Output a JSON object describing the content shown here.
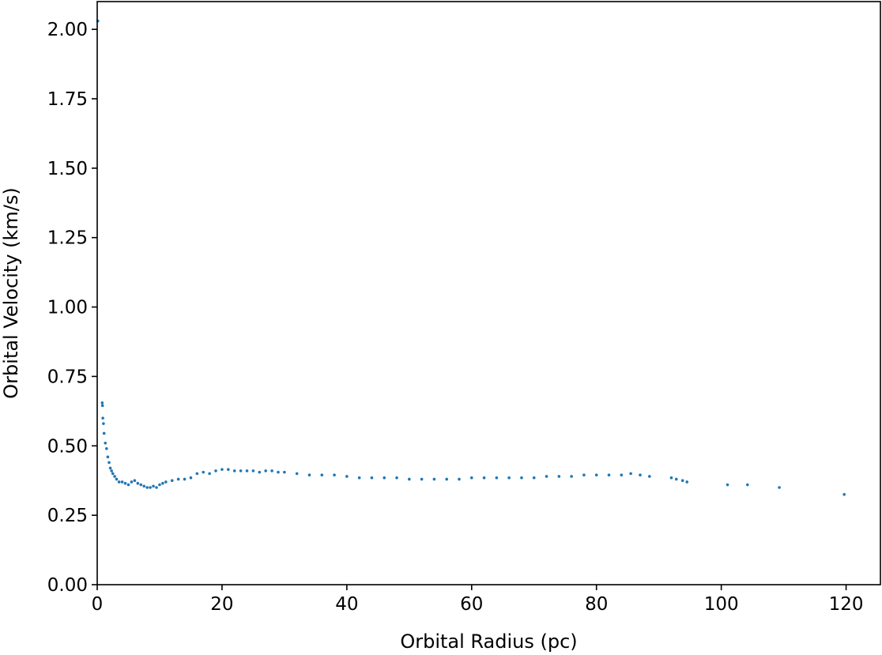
{
  "chart_data": {
    "type": "scatter",
    "title": "",
    "xlabel": "Orbital Radius (pc)",
    "ylabel": "Orbital Velocity (km/s)",
    "xlim": [
      0,
      125.5
    ],
    "ylim": [
      0,
      2.1
    ],
    "xticks": [
      0,
      20,
      40,
      60,
      80,
      100,
      120
    ],
    "yticks": [
      0.0,
      0.25,
      0.5,
      0.75,
      1.0,
      1.25,
      1.5,
      1.75,
      2.0
    ],
    "xtick_labels": [
      "0",
      "20",
      "40",
      "60",
      "80",
      "100",
      "120"
    ],
    "ytick_labels": [
      "0.00",
      "0.25",
      "0.50",
      "0.75",
      "1.00",
      "1.25",
      "1.50",
      "1.75",
      "2.00"
    ],
    "grid": false,
    "marker_color": "#1f77b4",
    "series": [
      {
        "x": [
          0.1,
          0.8,
          0.85,
          0.9,
          1.0,
          1.1,
          1.3,
          1.5,
          1.7,
          1.9,
          2.1,
          2.3,
          2.5,
          2.8,
          3.1,
          3.5,
          4.0,
          4.5,
          5.0,
          5.5,
          6.0,
          6.5,
          7.0,
          7.5,
          8.0,
          8.5,
          9.0,
          9.5,
          10.0,
          10.5,
          11.0,
          12.0,
          13.0,
          14.0,
          15.0,
          16.0,
          17.0,
          18.0,
          19.0,
          20.0,
          21.0,
          22.0,
          23.0,
          24.0,
          25.0,
          26.0,
          27.0,
          28.0,
          29.0,
          30.0,
          32.0,
          34.0,
          36.0,
          38.0,
          40.0,
          42.0,
          44.0,
          46.0,
          48.0,
          50.0,
          52.0,
          54.0,
          56.0,
          58.0,
          60.0,
          62.0,
          64.0,
          66.0,
          68.0,
          70.0,
          72.0,
          74.0,
          76.0,
          78.0,
          80.0,
          82.0,
          84.0,
          85.5,
          87.0,
          88.5,
          92.0,
          92.8,
          93.8,
          94.5,
          101.0,
          104.2,
          109.3,
          119.7
        ],
        "y": [
          2.03,
          0.655,
          0.645,
          0.6,
          0.58,
          0.545,
          0.51,
          0.49,
          0.46,
          0.44,
          0.42,
          0.41,
          0.4,
          0.39,
          0.38,
          0.37,
          0.37,
          0.365,
          0.36,
          0.37,
          0.375,
          0.365,
          0.36,
          0.355,
          0.35,
          0.35,
          0.355,
          0.35,
          0.36,
          0.365,
          0.37,
          0.375,
          0.38,
          0.38,
          0.385,
          0.4,
          0.405,
          0.4,
          0.41,
          0.415,
          0.415,
          0.41,
          0.41,
          0.41,
          0.41,
          0.405,
          0.41,
          0.41,
          0.405,
          0.405,
          0.4,
          0.395,
          0.395,
          0.395,
          0.39,
          0.385,
          0.385,
          0.385,
          0.385,
          0.38,
          0.38,
          0.38,
          0.38,
          0.38,
          0.385,
          0.385,
          0.385,
          0.385,
          0.385,
          0.385,
          0.39,
          0.39,
          0.39,
          0.395,
          0.395,
          0.395,
          0.395,
          0.4,
          0.395,
          0.39,
          0.385,
          0.38,
          0.375,
          0.37,
          0.36,
          0.36,
          0.35,
          0.325
        ]
      }
    ]
  }
}
